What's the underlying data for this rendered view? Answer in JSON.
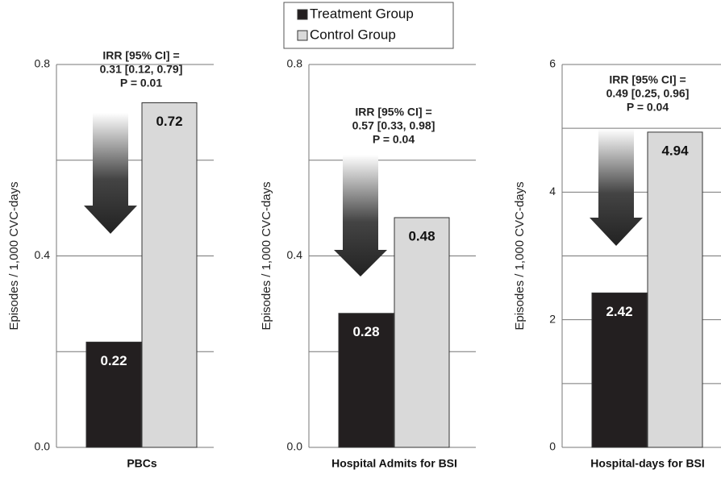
{
  "chart_data": [
    {
      "type": "bar",
      "categories": [
        "PBCs"
      ],
      "ylabel": "Episodes / 1,000 CVC-days",
      "series": [
        {
          "name": "Treatment Group",
          "color": "#231f20",
          "values": [
            0.22
          ]
        },
        {
          "name": "Control Group",
          "color": "#d9d9d9",
          "values": [
            0.72
          ]
        }
      ],
      "ylim": [
        0,
        0.8
      ],
      "yticks": [
        {
          "value": 0,
          "label": "0.0"
        },
        0.4,
        0.8
      ],
      "minor_grid": [
        0.2,
        0.6
      ],
      "annotation": [
        "IRR [95% CI] =",
        "0.31 [0.12, 0.79]",
        "P = 0.01"
      ]
    },
    {
      "type": "bar",
      "categories": [
        "Hospital Admits for BSI"
      ],
      "ylabel": "Episodes / 1,000 CVC-days",
      "series": [
        {
          "name": "Treatment Group",
          "color": "#231f20",
          "values": [
            0.28
          ]
        },
        {
          "name": "Control Group",
          "color": "#d9d9d9",
          "values": [
            0.48
          ]
        }
      ],
      "ylim": [
        0,
        0.8
      ],
      "yticks": [
        {
          "value": 0,
          "label": "0.0"
        },
        0.4,
        0.8
      ],
      "minor_grid": [
        0.2,
        0.6
      ],
      "annotation": [
        "IRR [95% CI] =",
        "0.57 [0.33, 0.98]",
        "P = 0.04"
      ]
    },
    {
      "type": "bar",
      "categories": [
        "Hospital-days for BSI"
      ],
      "ylabel": "Episodes / 1,000 CVC-days",
      "series": [
        {
          "name": "Treatment Group",
          "color": "#231f20",
          "values": [
            2.42
          ]
        },
        {
          "name": "Control Group",
          "color": "#d9d9d9",
          "values": [
            4.94
          ]
        }
      ],
      "ylim": [
        0,
        6
      ],
      "yticks": [
        0,
        2,
        4,
        6
      ],
      "minor_grid": [
        1,
        3,
        5
      ],
      "annotation": [
        "IRR [95% CI] =",
        "0.49 [0.25, 0.96]",
        "P = 0.04"
      ]
    }
  ]
}
